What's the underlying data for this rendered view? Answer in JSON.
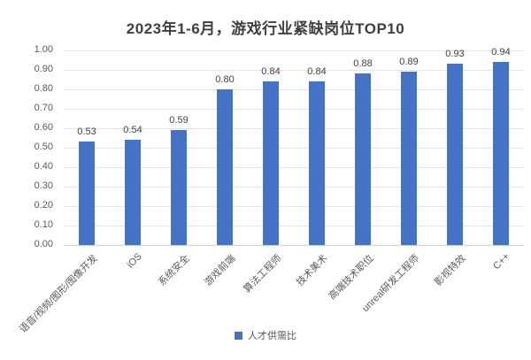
{
  "chart_data": {
    "type": "bar",
    "title": "2023年1-6月，游戏行业紧缺岗位TOP10",
    "categories": [
      "语音/视频/图形/图像开发",
      "iOS",
      "系统安全",
      "游戏前端",
      "算法工程师",
      "技术美术",
      "高端技术职位",
      "unreal研发工程师",
      "影视特效",
      "C++"
    ],
    "values": [
      0.53,
      0.54,
      0.59,
      0.8,
      0.84,
      0.84,
      0.88,
      0.89,
      0.93,
      0.94
    ],
    "data_labels": [
      "0.53",
      "0.54",
      "0.59",
      "0.80",
      "0.84",
      "0.84",
      "0.88",
      "0.89",
      "0.93",
      "0.94"
    ],
    "xlabel": "",
    "ylabel": "",
    "ylim": [
      0.0,
      1.0
    ],
    "y_tick_step": 0.1,
    "y_ticks": [
      "0.00",
      "0.10",
      "0.20",
      "0.30",
      "0.40",
      "0.50",
      "0.60",
      "0.70",
      "0.80",
      "0.90",
      "1.00"
    ],
    "grid": true,
    "legend": {
      "position": "bottom-center",
      "entries": [
        {
          "label": "人才供需比",
          "color": "#4472c4"
        }
      ]
    },
    "colors": {
      "bar": "#4472c4",
      "gridline": "#e4e4e4",
      "baseline": "#d3d3d3",
      "title_text": "#3f3f3f",
      "tick_text": "#595959",
      "value_label_text": "#404040",
      "background": "#ffffff"
    }
  }
}
